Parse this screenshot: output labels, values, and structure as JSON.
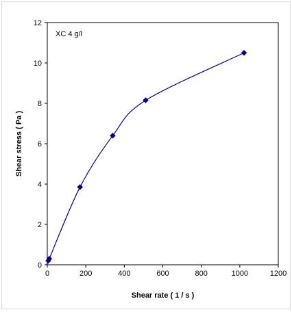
{
  "chart_data": {
    "type": "scatter",
    "annotation": "XC  4 g/l",
    "xlabel": "Shear rate ( 1 / s )",
    "ylabel": "Shear stress ( Pa )",
    "xlim": [
      0,
      1200
    ],
    "ylim": [
      0,
      12
    ],
    "x_ticks": [
      "0",
      "200",
      "400",
      "600",
      "800",
      "1000",
      "1200"
    ],
    "y_ticks": [
      "0",
      "2",
      "4",
      "6",
      "8",
      "10",
      "12"
    ],
    "grid": false,
    "legend": "none",
    "marker": "diamond",
    "series_color": "#000080",
    "points": [
      {
        "x": 5.1,
        "y": 0.2
      },
      {
        "x": 10.2,
        "y": 0.3
      },
      {
        "x": 170,
        "y": 3.85
      },
      {
        "x": 340,
        "y": 6.4
      },
      {
        "x": 511,
        "y": 8.15
      },
      {
        "x": 1022,
        "y": 10.5
      }
    ]
  }
}
